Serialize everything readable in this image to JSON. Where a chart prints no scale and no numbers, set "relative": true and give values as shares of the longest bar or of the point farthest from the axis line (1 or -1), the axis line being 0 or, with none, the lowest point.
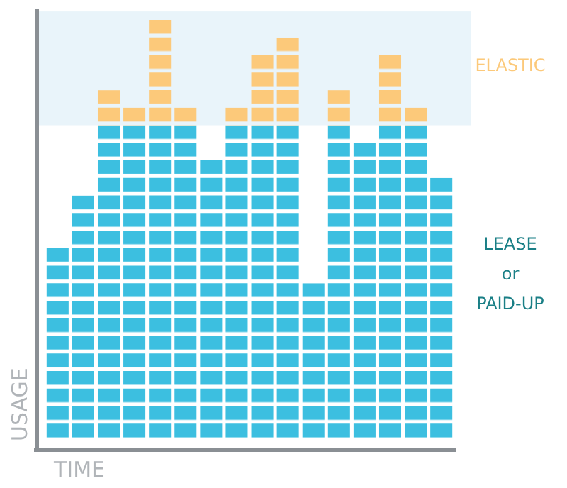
{
  "chart_data": {
    "type": "bar",
    "relative": true,
    "stacked": true,
    "xlabel": "TIME",
    "ylabel": "USAGE",
    "categories": [
      null,
      null,
      null,
      null,
      null,
      null,
      null,
      null,
      null,
      null,
      null,
      null,
      null,
      null,
      null,
      null
    ],
    "series": [
      {
        "name": "LEASE or PAID-UP",
        "color": "#3cbfe0",
        "values": [
          0.458,
          0.583,
          0.75,
          0.75,
          0.75,
          0.75,
          0.667,
          0.75,
          0.75,
          0.75,
          0.375,
          0.75,
          0.708,
          0.75,
          0.75,
          0.625
        ]
      },
      {
        "name": "ELASTIC",
        "color": "#fcc97a",
        "values": [
          0,
          0,
          0.083,
          0.042,
          0.25,
          0.042,
          0,
          0.042,
          0.167,
          0.208,
          0,
          0.083,
          0,
          0.167,
          0.042,
          0
        ]
      }
    ],
    "bands": [
      {
        "axis": "y",
        "from": 0.75,
        "to": 1.02,
        "color": "#e9f4fa"
      }
    ]
  }
}
